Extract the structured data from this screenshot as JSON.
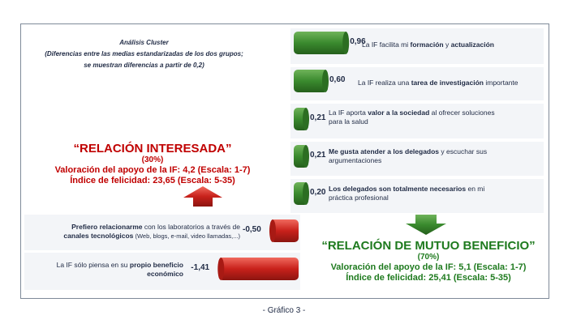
{
  "cluster": {
    "title": "Análisis Cluster",
    "line1": "(Diferencias entre las medias estandarizadas de los dos grupos;",
    "line2": "se muestran diferencias a partir de 0,2)"
  },
  "interesada": {
    "title": "“RELACIÓN INTERESADA”",
    "pct": "(30%)",
    "line1": "Valoración del apoyo de la IF: 4,2 (Escala: 1-7)",
    "line2": "Índice de felicidad: 23,65 (Escala: 5-35)"
  },
  "mutuo": {
    "title": "“RELACIÓN DE MUTUO BENEFICIO”",
    "pct": "(70%)",
    "line1": "Valoración del apoyo de la IF: 5,1 (Escala: 1-7)",
    "line2": "Índice de felicidad: 25,41 (Escala: 5-35)"
  },
  "caption": "- Gráfico 3 -",
  "colors": {
    "positive": "#3a8a2e",
    "negative": "#c8211b",
    "red_text": "#c00000",
    "green_text": "#1e7a1e"
  },
  "chart_data": {
    "type": "bar",
    "orientation": "horizontal",
    "categories": [
      "La IF facilita mi formación y actualización",
      "La IF realiza una tarea de investigación importante",
      "La IF aporta valor a la sociedad al ofrecer soluciones para la salud",
      "Me gusta atender a los delegados y escuchar sus argumentaciones",
      "Los delegados son totalmente necesarios en mi práctica profesional",
      "Prefiero relacionarme con los laboratorios a través de canales tecnológicos (Web, blogs, e-mail, video llamadas,...)",
      "La IF sólo piensa en su propio beneficio económico"
    ],
    "values": [
      0.96,
      0.6,
      0.21,
      0.21,
      0.2,
      -0.5,
      -1.41
    ],
    "value_labels": [
      "0,96",
      "0,60",
      "0,21",
      "0,21",
      "0,20",
      "-0,50",
      "-1,41"
    ]
  },
  "items": [
    {
      "pre": "La IF facilita mi ",
      "b1": "formación",
      "mid": " y ",
      "b2": "actualización",
      "post": ""
    },
    {
      "pre": "La IF realiza una ",
      "b1": "tarea de investigación",
      "mid": " importante",
      "b2": "",
      "post": ""
    },
    {
      "pre": "La IF aporta ",
      "b1": "valor a la sociedad",
      "mid": " al ofrecer soluciones",
      "b2": "",
      "post": "para la salud"
    },
    {
      "pre": "",
      "b1": "Me gusta atender a los delegados",
      "mid": " y escuchar sus",
      "b2": "",
      "post": "argumentaciones"
    },
    {
      "pre": "",
      "b1": "Los delegados son totalmente necesarios",
      "mid": " en mi",
      "b2": "",
      "post": "práctica profesional"
    },
    {
      "pre": "",
      "b1": "Prefiero relacionarme",
      "mid": " con los laboratorios a través de",
      "b2": "canales tecnológicos",
      "post": " (Web, blogs, e-mail, video llamadas,...)"
    },
    {
      "pre": "La IF sólo piensa en su ",
      "b1": "propio beneficio",
      "mid": "",
      "b2": "económico",
      "post": ""
    }
  ]
}
